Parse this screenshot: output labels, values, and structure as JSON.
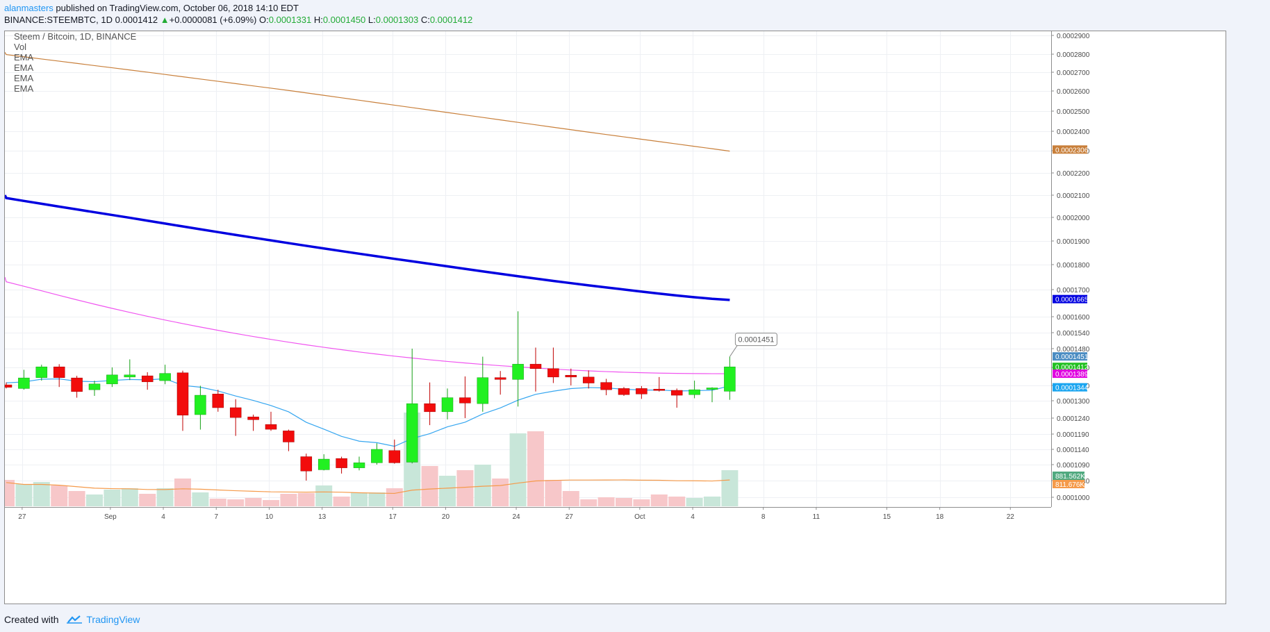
{
  "header": {
    "author": "alanmasters",
    "published_text": " published on TradingView.com, October 06, 2018 14:10 EDT",
    "symbol": "BINANCE:STEEMBTC, 1D",
    "last": "0.0001412",
    "change": "+0.0000081 (+6.09%)",
    "o_label": "O:",
    "o_val": "0.0001331",
    "h_label": "H:",
    "h_val": "0.0001450",
    "l_label": "L:",
    "l_val": "0.0001303",
    "c_label": "C:",
    "c_val": "0.0001412"
  },
  "legend": {
    "title": "Steem / Bitcoin, 1D, BINANCE",
    "items": [
      "Vol",
      "EMA",
      "EMA",
      "EMA",
      "EMA"
    ]
  },
  "footer": {
    "created_with": "Created with",
    "brand": "TradingView"
  },
  "colors": {
    "up": "#21f021",
    "down": "#f20c0c",
    "ema200": "#0000e0",
    "ema_brown": "#c87f3a",
    "ema_magenta": "#f055f0",
    "ema_blue": "#35a6f0",
    "vol_up": "#c8e6d9",
    "vol_down": "#f7c7c9",
    "vol_ma": "#f59a4a",
    "grid": "#eef0f4"
  },
  "chart_data": {
    "type": "candlestick",
    "x_tick_labels": [
      "27",
      "Sep",
      "4",
      "7",
      "10",
      "13",
      "17",
      "20",
      "24",
      "27",
      "Oct",
      "4",
      "8",
      "11",
      "15",
      "18",
      "22"
    ],
    "y_tick_labels": [
      "0.0001000",
      "0.0001040",
      "0.0001090",
      "0.0001140",
      "0.0001190",
      "0.0001240",
      "0.0001300",
      "0.0001350",
      "0.0001410",
      "0.0001480",
      "0.0001540",
      "0.0001600",
      "0.0001700",
      "0.0001800",
      "0.0001900",
      "0.0002000",
      "0.0002100",
      "0.0002200",
      "0.0002300",
      "0.0002400",
      "0.0002500",
      "0.0002600",
      "0.0002700",
      "0.0002800",
      "0.0002900"
    ],
    "candles": [
      {
        "o": 0.0001352,
        "h": 0.000136,
        "l": 0.000134,
        "c": 0.0001344
      },
      {
        "o": 0.000134,
        "h": 0.0001402,
        "l": 0.0001336,
        "c": 0.0001375
      },
      {
        "o": 0.0001376,
        "h": 0.000142,
        "l": 0.0001366,
        "c": 0.0001412
      },
      {
        "o": 0.0001412,
        "h": 0.0001422,
        "l": 0.0001345,
        "c": 0.0001376
      },
      {
        "o": 0.0001375,
        "h": 0.0001382,
        "l": 0.000131,
        "c": 0.000133
      },
      {
        "o": 0.0001336,
        "h": 0.0001366,
        "l": 0.0001316,
        "c": 0.0001355
      },
      {
        "o": 0.0001355,
        "h": 0.000141,
        "l": 0.0001345,
        "c": 0.0001385
      },
      {
        "o": 0.0001378,
        "h": 0.000144,
        "l": 0.0001368,
        "c": 0.0001385
      },
      {
        "o": 0.0001382,
        "h": 0.0001394,
        "l": 0.0001336,
        "c": 0.0001362
      },
      {
        "o": 0.0001366,
        "h": 0.000142,
        "l": 0.0001354,
        "c": 0.000139
      },
      {
        "o": 0.0001392,
        "h": 0.0001399,
        "l": 0.00012,
        "c": 0.000125
      },
      {
        "o": 0.0001252,
        "h": 0.0001349,
        "l": 0.0001204,
        "c": 0.0001318
      },
      {
        "o": 0.0001322,
        "h": 0.0001336,
        "l": 0.0001262,
        "c": 0.0001276
      },
      {
        "o": 0.0001276,
        "h": 0.0001305,
        "l": 0.0001184,
        "c": 0.0001242
      },
      {
        "o": 0.0001244,
        "h": 0.0001252,
        "l": 0.00012,
        "c": 0.0001235
      },
      {
        "o": 0.000122,
        "h": 0.0001262,
        "l": 0.00012,
        "c": 0.0001205
      },
      {
        "o": 0.00012,
        "h": 0.0001204,
        "l": 0.0001134,
        "c": 0.0001164
      },
      {
        "o": 0.0001116,
        "h": 0.0001126,
        "l": 0.000104,
        "c": 0.000107
      },
      {
        "o": 0.0001074,
        "h": 0.0001124,
        "l": 0.0001072,
        "c": 0.0001108
      },
      {
        "o": 0.000111,
        "h": 0.0001116,
        "l": 0.0001062,
        "c": 0.000108
      },
      {
        "o": 0.000108,
        "h": 0.0001116,
        "l": 0.0001072,
        "c": 0.0001096
      },
      {
        "o": 0.0001096,
        "h": 0.000116,
        "l": 0.000109,
        "c": 0.000114
      },
      {
        "o": 0.0001136,
        "h": 0.0001172,
        "l": 0.0001093,
        "c": 0.0001096
      },
      {
        "o": 0.0001098,
        "h": 0.000148,
        "l": 0.0001094,
        "c": 0.000129
      },
      {
        "o": 0.000129,
        "h": 0.000136,
        "l": 0.0001218,
        "c": 0.0001262
      },
      {
        "o": 0.0001262,
        "h": 0.000134,
        "l": 0.0001236,
        "c": 0.000131
      },
      {
        "o": 0.000131,
        "h": 0.000138,
        "l": 0.000124,
        "c": 0.0001292
      },
      {
        "o": 0.000129,
        "h": 0.000145,
        "l": 0.0001262,
        "c": 0.0001376
      },
      {
        "o": 0.0001376,
        "h": 0.0001398,
        "l": 0.000132,
        "c": 0.000137
      },
      {
        "o": 0.000137,
        "h": 0.000162,
        "l": 0.000128,
        "c": 0.0001422
      },
      {
        "o": 0.0001422,
        "h": 0.0001484,
        "l": 0.000133,
        "c": 0.0001406
      },
      {
        "o": 0.0001406,
        "h": 0.0001484,
        "l": 0.0001358,
        "c": 0.0001378
      },
      {
        "o": 0.0001384,
        "h": 0.0001406,
        "l": 0.000135,
        "c": 0.0001378
      },
      {
        "o": 0.0001378,
        "h": 0.00014,
        "l": 0.000134,
        "c": 0.0001358
      },
      {
        "o": 0.000136,
        "h": 0.0001372,
        "l": 0.0001318,
        "c": 0.0001336
      },
      {
        "o": 0.000134,
        "h": 0.0001345,
        "l": 0.0001316,
        "c": 0.000132
      },
      {
        "o": 0.000134,
        "h": 0.0001348,
        "l": 0.0001306,
        "c": 0.0001322
      },
      {
        "o": 0.0001338,
        "h": 0.0001378,
        "l": 0.000133,
        "c": 0.0001336
      },
      {
        "o": 0.0001334,
        "h": 0.000134,
        "l": 0.0001276,
        "c": 0.0001318
      },
      {
        "o": 0.000132,
        "h": 0.0001366,
        "l": 0.0001308,
        "c": 0.0001336
      },
      {
        "o": 0.0001337,
        "h": 0.0001344,
        "l": 0.0001295,
        "c": 0.0001342
      },
      {
        "o": 0.0001331,
        "h": 0.000145,
        "l": 0.0001303,
        "c": 0.0001412
      }
    ],
    "volume_rel": [
      0.38,
      0.32,
      0.35,
      0.3,
      0.22,
      0.17,
      0.24,
      0.26,
      0.18,
      0.26,
      0.4,
      0.2,
      0.11,
      0.1,
      0.12,
      0.09,
      0.18,
      0.19,
      0.3,
      0.14,
      0.2,
      0.2,
      0.26,
      1.35,
      0.58,
      0.44,
      0.52,
      0.6,
      0.4,
      1.05,
      1.08,
      0.38,
      0.22,
      0.1,
      0.13,
      0.12,
      0.1,
      0.17,
      0.14,
      0.12,
      0.14,
      0.52
    ],
    "lines": {
      "ema_brown": [
        0.000281,
        0.0002298
      ],
      "ema200": [
        0.00021,
        0.0001662
      ],
      "ema_magenta": [
        0.000175,
        0.0001389
      ],
      "ema_blue": "ema20"
    },
    "price_labels": [
      {
        "text": "0.0002306",
        "color": "#c87f3a",
        "price": 0.0002306
      },
      {
        "text": "0.0001665",
        "color": "#0000e0",
        "price": 0.0001665
      },
      {
        "text": "0.0001451",
        "color": "#4a8cc2",
        "price": 0.0001451
      },
      {
        "text": "0.0001412",
        "color": "#21c021",
        "price": 0.0001412
      },
      {
        "text": "0.0001389",
        "color": "#e000e0",
        "price": 0.0001389
      },
      {
        "text": "0.0001344",
        "color": "#1aa5f0",
        "price": 0.0001344
      }
    ],
    "volume_labels": [
      {
        "text": "881.562K",
        "color": "#50a97f"
      },
      {
        "text": "811.676K",
        "color": "#f59a4a"
      }
    ],
    "callout": "0.0001451"
  }
}
